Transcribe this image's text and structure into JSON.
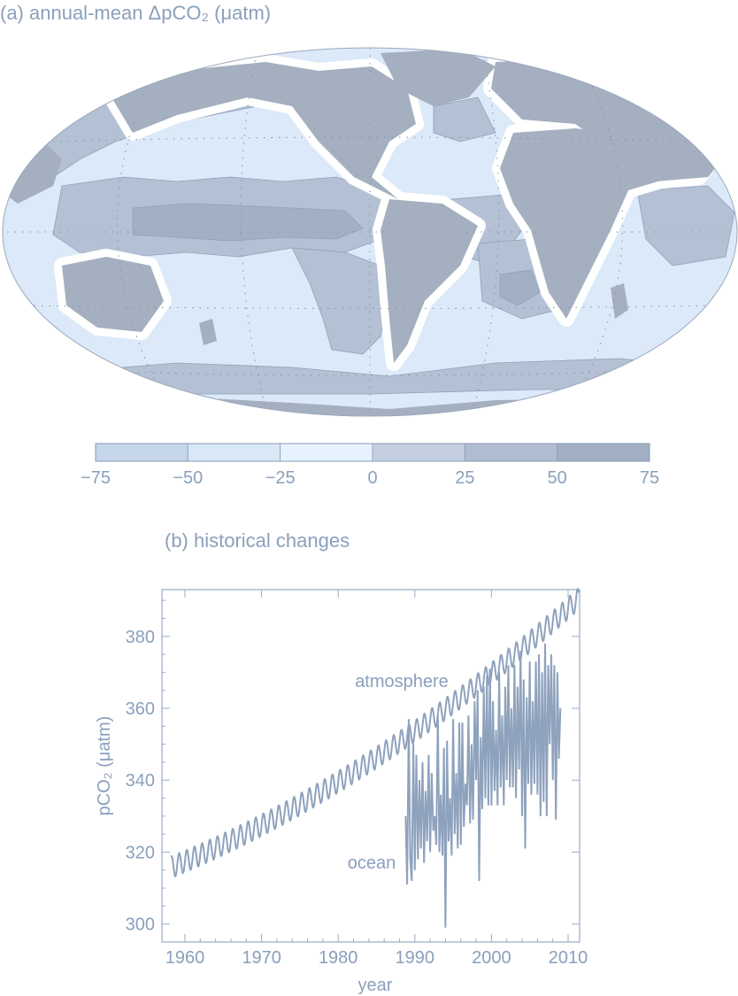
{
  "panel_a": {
    "title": "(a) annual-mean ΔpCO₂ (μatm)",
    "colorbar": {
      "ticks": [
        "−75",
        "−50",
        "−25",
        "0",
        "25",
        "50",
        "75"
      ],
      "bin_colors": [
        "#c5d6ea",
        "#d9e8f7",
        "#e6f2fd",
        "#c4d0e1",
        "#b0bdd0",
        "#a2afc2"
      ]
    },
    "colors": {
      "land": "#a4b0c0",
      "coast_white": "#ffffff",
      "ocean_neg": "#dbe9f8",
      "ocean_pos": "#b4c1d4",
      "ocean_high": "#a3b0c3",
      "grid": "#7f8fa6"
    }
  },
  "panel_b": {
    "title": "(b) historical changes",
    "chart_data": {
      "type": "line",
      "title": "(b) historical changes",
      "xlabel": "year",
      "ylabel": "pCO₂ (μatm)",
      "xlim": [
        1957,
        2011.5
      ],
      "ylim": [
        295,
        393
      ],
      "x_ticks": [
        1960,
        1970,
        1980,
        1990,
        2000,
        2010
      ],
      "y_ticks": [
        300,
        320,
        340,
        360,
        380
      ],
      "series": [
        {
          "name": "atmosphere",
          "label": "atmosphere",
          "x_start": 1958.2,
          "x_end": 2011.4,
          "trend_start": 315.8,
          "trend_end": 390.5,
          "seasonal_amplitude": 3.0,
          "color": "#8ea2bd"
        },
        {
          "name": "ocean",
          "label": "ocean",
          "x": [
            1988.8,
            1989.0,
            1989.2,
            1989.4,
            1989.6,
            1989.8,
            1990.0,
            1990.2,
            1990.4,
            1990.6,
            1990.8,
            1991.0,
            1991.2,
            1991.4,
            1991.6,
            1991.8,
            1992.0,
            1992.2,
            1992.4,
            1992.6,
            1992.8,
            1993.0,
            1993.2,
            1993.4,
            1993.6,
            1993.8,
            1994.0,
            1994.2,
            1994.4,
            1994.6,
            1994.8,
            1995.0,
            1995.2,
            1995.4,
            1995.6,
            1995.8,
            1996.0,
            1996.2,
            1996.4,
            1996.6,
            1996.8,
            1997.0,
            1997.2,
            1997.4,
            1997.6,
            1997.8,
            1998.0,
            1998.2,
            1998.4,
            1998.6,
            1998.8,
            1999.0,
            1999.2,
            1999.4,
            1999.6,
            1999.8,
            2000.0,
            2000.2,
            2000.4,
            2000.6,
            2000.8,
            2001.0,
            2001.2,
            2001.4,
            2001.6,
            2001.8,
            2002.0,
            2002.2,
            2002.4,
            2002.6,
            2002.8,
            2003.0,
            2003.2,
            2003.4,
            2003.6,
            2003.8,
            2004.0,
            2004.2,
            2004.4,
            2004.6,
            2004.8,
            2005.0,
            2005.2,
            2005.4,
            2005.6,
            2005.8,
            2006.0,
            2006.2,
            2006.4,
            2006.6,
            2006.8,
            2007.0,
            2007.2,
            2007.4,
            2007.6,
            2007.8,
            2008.0,
            2008.2,
            2008.4,
            2008.6,
            2008.8,
            2009.0
          ],
          "values": [
            330,
            311,
            357,
            318,
            312,
            350,
            315,
            347,
            318,
            340,
            321,
            345,
            317,
            337,
            323,
            347,
            320,
            342,
            326,
            330,
            322,
            358,
            320,
            336,
            319,
            349,
            299,
            351,
            323,
            335,
            319,
            357,
            325,
            342,
            321,
            356,
            322,
            356,
            327,
            339,
            333,
            358,
            328,
            350,
            329,
            362,
            340,
            365,
            312,
            352,
            332,
            366,
            335,
            369,
            333,
            371,
            333,
            362,
            337,
            354,
            333,
            370,
            338,
            358,
            333,
            366,
            340,
            372,
            338,
            360,
            338,
            372,
            335,
            366,
            343,
            376,
            330,
            368,
            321,
            363,
            339,
            373,
            336,
            362,
            339,
            373,
            336,
            375,
            330,
            370,
            334,
            378,
            330,
            372,
            350,
            375,
            340,
            372,
            329,
            370,
            346,
            360
          ],
          "color": "#8ea2bd"
        }
      ]
    }
  }
}
